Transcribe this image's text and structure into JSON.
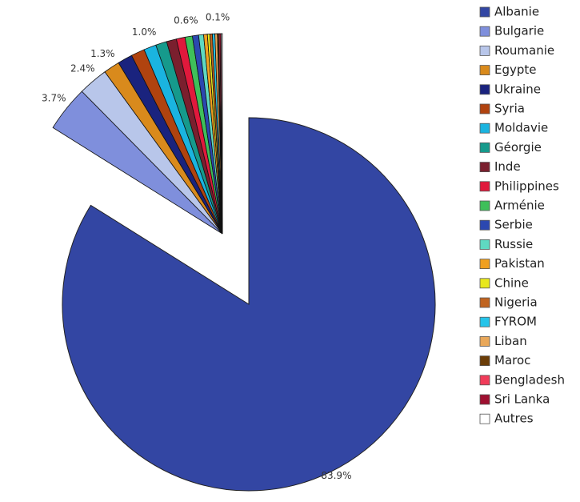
{
  "chart_data": {
    "type": "pie",
    "categories": [
      "Albanie",
      "Bulgarie",
      "Roumanie",
      "Egypte",
      "Ukraine",
      "Syria",
      "Moldavie",
      "Géorgie",
      "Inde",
      "Philippines",
      "Arménie",
      "Serbie",
      "Russie",
      "Pakistan",
      "Chine",
      "Nigeria",
      "FYROM",
      "Liban",
      "Maroc",
      "Bengladesh",
      "Sri Lanka",
      "Autres"
    ],
    "values": [
      83.9,
      3.7,
      2.4,
      1.3,
      1.2,
      1.1,
      1.0,
      0.9,
      0.8,
      0.7,
      0.6,
      0.5,
      0.4,
      0.3,
      0.2,
      0.2,
      0.2,
      0.2,
      0.1,
      0.1,
      0.1,
      0.1
    ],
    "value_labels": [
      "83.9%",
      "3.7%",
      "2.4%",
      "1.3%",
      null,
      null,
      "1.0%",
      null,
      null,
      null,
      "0.6%",
      null,
      null,
      null,
      null,
      null,
      null,
      null,
      "0.1%",
      null,
      null,
      null
    ],
    "colors": [
      "#3346a3",
      "#7f8fdc",
      "#b8c6ea",
      "#d98a1c",
      "#1a237e",
      "#b0430f",
      "#1ab4e0",
      "#169a8c",
      "#7a1f2e",
      "#e0193c",
      "#3fbf5a",
      "#2b48b0",
      "#5fd9c2",
      "#f0a020",
      "#e8e81c",
      "#c06420",
      "#25c4ea",
      "#e9a85a",
      "#6b3d08",
      "#f03c5a",
      "#9e1030",
      "#ffffff"
    ]
  }
}
